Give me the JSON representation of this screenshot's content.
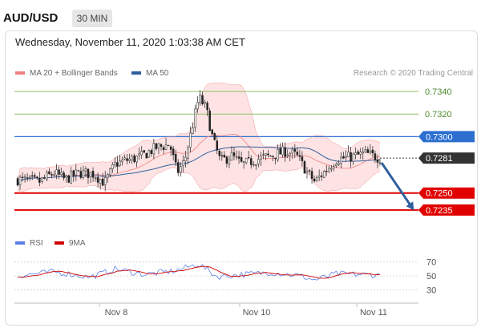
{
  "header": {
    "symbol": "AUD/USD",
    "timeframe": "30 MIN"
  },
  "datetime": "Wednesday, November 11, 2020 1:03:38 AM CET",
  "legend": {
    "bollinger_label": "MA 20 + Bollinger Bands",
    "ma50_label": "MA 50",
    "credit": "Research © 2020 Trading Central",
    "rsi_label": "RSI",
    "ma9_label": "9MA"
  },
  "colors": {
    "bollinger": "#f08080",
    "bollinger_fill": "#fde3e3",
    "ma50": "#2f5f9e",
    "resistance": "#8cc26a",
    "pivot": "#2c6fd1",
    "support": "#e00000",
    "last_price": "#333333",
    "arrow": "#2f5f9e",
    "rsi": "#5b7fe8",
    "ma9": "#d00000"
  },
  "chart_data": [
    {
      "type": "candlestick",
      "x_tick_labels": [
        "Nov 8",
        "Nov 10",
        "Nov 11"
      ],
      "ylim": [
        0.7215,
        0.735
      ],
      "levels": [
        {
          "label": "0.7340",
          "value": 0.734,
          "kind": "resistance"
        },
        {
          "label": "0.7320",
          "value": 0.732,
          "kind": "resistance"
        },
        {
          "label": "0.7300",
          "value": 0.73,
          "kind": "pivot"
        },
        {
          "label": "0.7281",
          "value": 0.7281,
          "kind": "last"
        },
        {
          "label": "0.7250",
          "value": 0.725,
          "kind": "support"
        },
        {
          "label": "0.7235",
          "value": 0.7235,
          "kind": "support"
        }
      ],
      "close_path": [
        {
          "t": 0,
          "v": 0.7262
        },
        {
          "t": 0.06,
          "v": 0.726
        },
        {
          "t": 0.1,
          "v": 0.7268
        },
        {
          "t": 0.13,
          "v": 0.7262
        },
        {
          "t": 0.17,
          "v": 0.7268
        },
        {
          "t": 0.21,
          "v": 0.7267
        },
        {
          "t": 0.24,
          "v": 0.7259
        },
        {
          "t": 0.27,
          "v": 0.7276
        },
        {
          "t": 0.3,
          "v": 0.7279
        },
        {
          "t": 0.34,
          "v": 0.7282
        },
        {
          "t": 0.38,
          "v": 0.729
        },
        {
          "t": 0.42,
          "v": 0.7293
        },
        {
          "t": 0.44,
          "v": 0.7268
        },
        {
          "t": 0.46,
          "v": 0.7278
        },
        {
          "t": 0.48,
          "v": 0.7306
        },
        {
          "t": 0.5,
          "v": 0.7335
        },
        {
          "t": 0.52,
          "v": 0.7325
        },
        {
          "t": 0.54,
          "v": 0.7296
        },
        {
          "t": 0.56,
          "v": 0.7278
        },
        {
          "t": 0.59,
          "v": 0.7283
        },
        {
          "t": 0.62,
          "v": 0.7275
        },
        {
          "t": 0.66,
          "v": 0.728
        },
        {
          "t": 0.7,
          "v": 0.7283
        },
        {
          "t": 0.74,
          "v": 0.7287
        },
        {
          "t": 0.77,
          "v": 0.7283
        },
        {
          "t": 0.8,
          "v": 0.7268
        },
        {
          "t": 0.82,
          "v": 0.726
        },
        {
          "t": 0.85,
          "v": 0.727
        },
        {
          "t": 0.88,
          "v": 0.728
        },
        {
          "t": 0.92,
          "v": 0.7282
        },
        {
          "t": 0.96,
          "v": 0.7285
        },
        {
          "t": 1,
          "v": 0.7281
        }
      ],
      "forecast_target": 0.7235
    },
    {
      "type": "line",
      "series": [
        {
          "name": "RSI"
        },
        {
          "name": "9MA"
        }
      ],
      "y_tick_labels": [
        "70",
        "50",
        "30"
      ],
      "ylim": [
        20,
        80
      ],
      "rsi_anchor": [
        {
          "t": 0,
          "v": 50
        },
        {
          "t": 0.1,
          "v": 56
        },
        {
          "t": 0.2,
          "v": 48
        },
        {
          "t": 0.27,
          "v": 60
        },
        {
          "t": 0.35,
          "v": 52
        },
        {
          "t": 0.43,
          "v": 57
        },
        {
          "t": 0.5,
          "v": 67
        },
        {
          "t": 0.55,
          "v": 49
        },
        {
          "t": 0.62,
          "v": 52
        },
        {
          "t": 0.7,
          "v": 55
        },
        {
          "t": 0.78,
          "v": 50
        },
        {
          "t": 0.82,
          "v": 44
        },
        {
          "t": 0.88,
          "v": 53
        },
        {
          "t": 0.94,
          "v": 52
        },
        {
          "t": 1,
          "v": 51
        }
      ]
    }
  ]
}
